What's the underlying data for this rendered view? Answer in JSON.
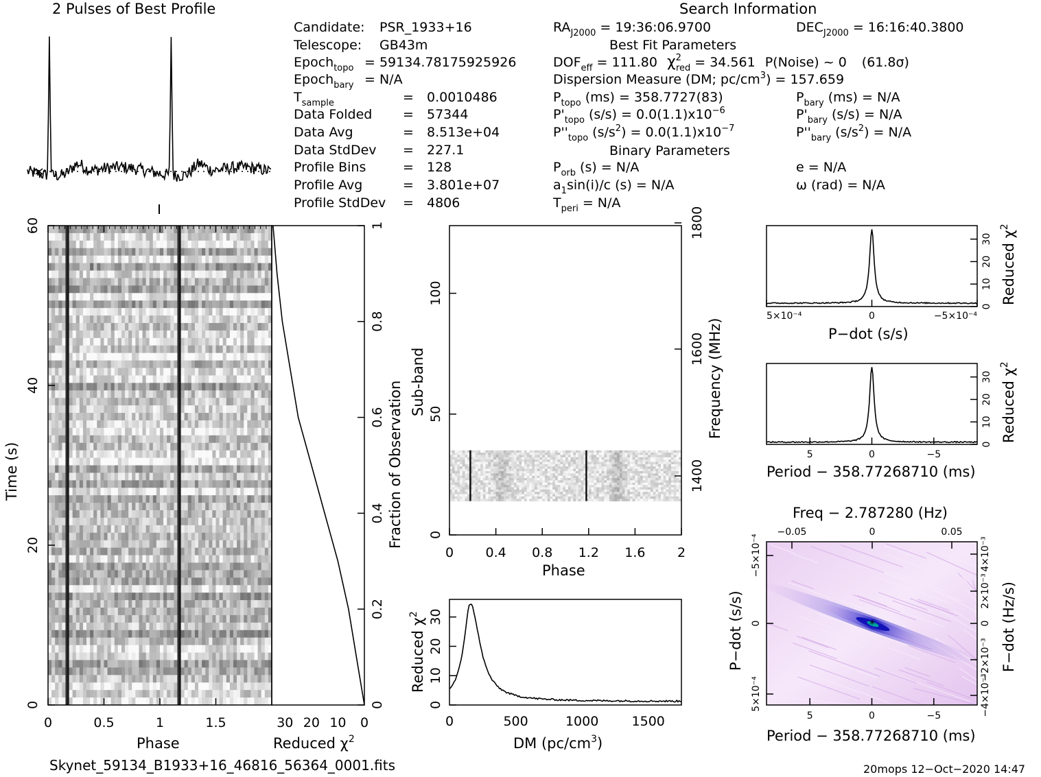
{
  "header": {
    "profile_title": "2 Pulses of Best Profile",
    "search_title": "Search Information",
    "best_fit_title": "Best Fit Parameters",
    "binary_title": "Binary Parameters"
  },
  "info_left": [
    {
      "label": "Candidate:",
      "label_sub": "",
      "value": "PSR_1933+16",
      "sep": ""
    },
    {
      "label": "Telescope:",
      "label_sub": "",
      "value": "GB43m",
      "sep": ""
    },
    {
      "label": "Epoch",
      "label_sub": "topo",
      "value": "59134.78175925926",
      "sep": "="
    },
    {
      "label": "Epoch",
      "label_sub": "bary",
      "value": "N/A",
      "sep": "="
    },
    {
      "label": "T",
      "label_sub": "sample",
      "value": "0.0010486",
      "sep": "="
    },
    {
      "label": "Data Folded",
      "label_sub": "",
      "value": "57344",
      "sep": "="
    },
    {
      "label": "Data Avg",
      "label_sub": "",
      "value": "8.513e+04",
      "sep": "="
    },
    {
      "label": "Data StdDev",
      "label_sub": "",
      "value": "227.1",
      "sep": "="
    },
    {
      "label": "Profile Bins",
      "label_sub": "",
      "value": "128",
      "sep": "="
    },
    {
      "label": "Profile Avg",
      "label_sub": "",
      "value": "3.801e+07",
      "sep": "="
    },
    {
      "label": "Profile StdDev",
      "label_sub": "",
      "value": "4806",
      "sep": "="
    }
  ],
  "info_mid": {
    "ra_label": "RA",
    "ra_sub": "J2000",
    "ra_value": "= 19:36:06.9700",
    "dec_label": "DEC",
    "dec_sub": "J2000",
    "dec_value": "= 16:16:40.3800",
    "dof_label": "DOF",
    "dof_sub": "eff",
    "dof_value": "= 111.80",
    "chi_label": "χ",
    "chi_sup": "2",
    "chi_sub": "red",
    "chi_value": "= 34.561",
    "pnoise": "P(Noise) ~ 0",
    "sigma": "(61.8σ)",
    "dm_text": "Dispersion Measure (DM; pc/cm",
    "dm_sup": "3",
    "dm_value": ") = 157.659",
    "ptopo_label": "P",
    "ptopo_sub": "topo",
    "ptopo_value": "(ms) =  358.7727(83)",
    "pdtopo_label": "P'",
    "pdtopo_sub": "topo",
    "pdtopo_value": "(s/s) = 0.0(1.1)x10",
    "pdtopo_exp": "−6",
    "pddtopo_label": "P''",
    "pddtopo_sub": "topo",
    "pddtopo_value": "(s/s",
    "pddtopo_sup": "2",
    "pddtopo_value2": ") = 0.0(1.1)x10",
    "pddtopo_exp": "−7",
    "porb_label": "P",
    "porb_sub": "orb",
    "porb_value": "(s) = N/A",
    "a1_text": "a",
    "a1_sub": "1",
    "a1_value": "sin(i)/c (s) = N/A",
    "tperi_label": "T",
    "tperi_sub": "peri",
    "tperi_value": "= N/A"
  },
  "info_right": {
    "pbary_label": "P",
    "pbary_sub": "bary",
    "pbary_value": "(ms) = N/A",
    "pdbary_label": "P'",
    "pdbary_sub": "bary",
    "pdbary_value": "(s/s) = N/A",
    "pddbary_label": "P''",
    "pddbary_sub": "bary",
    "pddbary_value": "(s/s",
    "pddbary_sup": "2",
    "pddbary_value2": ") = N/A",
    "e_value": "e = N/A",
    "omega_value": "ω (rad) = N/A"
  },
  "footer": {
    "filename": "Skynet_59134_B1933+16_46816_56364_0001.fits",
    "stamp": "20mops 12−Oct−2020 14:47"
  },
  "colors": {
    "ink": "#000000",
    "heat_low": "#ffffff",
    "heat_mid": "#e8b8ee",
    "heat_high": "#1e1ecc",
    "heat_peak": "#00a0a0"
  },
  "chart_data": [
    {
      "id": "profile",
      "type": "line",
      "title": "2 Pulses of Best Profile",
      "xlabel": "",
      "ylabel": "",
      "x_range": [
        0,
        2
      ],
      "peaks_phase": [
        0.18,
        1.18
      ],
      "grid": false
    },
    {
      "id": "time_phase",
      "type": "heatmap",
      "xlabel": "Phase",
      "ylabel": "Time (s)",
      "x_ticks": [
        "0",
        "0.5",
        "1",
        "1.5"
      ],
      "y_ticks": [
        "0",
        "20",
        "40",
        "60"
      ],
      "xlim": [
        0,
        2
      ],
      "ylim": [
        0,
        60
      ],
      "pulse_phases": [
        0.18,
        1.18
      ]
    },
    {
      "id": "time_chi2",
      "type": "line",
      "xlabel": "Reduced χ",
      "xlabel_sup": "2",
      "ylabel": "Fraction of Observation",
      "x_ticks": [
        "30",
        "20",
        "10",
        "0"
      ],
      "y_ticks": [
        "0",
        "0.2",
        "0.4",
        "0.6",
        "0.8",
        "1"
      ],
      "xlim": [
        35,
        0
      ],
      "ylim": [
        0,
        1
      ],
      "points": [
        [
          0,
          0
        ],
        [
          3,
          0.1
        ],
        [
          6,
          0.2
        ],
        [
          10,
          0.3
        ],
        [
          15,
          0.4
        ],
        [
          20,
          0.5
        ],
        [
          25,
          0.6
        ],
        [
          28,
          0.7
        ],
        [
          31,
          0.8
        ],
        [
          33,
          0.9
        ],
        [
          34.5,
          1.0
        ]
      ]
    },
    {
      "id": "subband_phase",
      "type": "heatmap",
      "xlabel": "Phase",
      "ylabel": "Sub-band",
      "ylabel_right": "Frequency (MHz)",
      "x_ticks": [
        "0",
        "0.4",
        "0.8",
        "1.2",
        "1.6",
        "2"
      ],
      "y_ticks": [
        "0",
        "50",
        "100"
      ],
      "y_ticks_right": [
        "1400",
        "1600",
        "1800"
      ],
      "xlim": [
        0,
        2
      ],
      "ylim": [
        0,
        128
      ],
      "band_subbands": [
        14,
        35
      ],
      "pulse_phases": [
        0.18,
        1.18
      ]
    },
    {
      "id": "dm_chi2",
      "type": "line",
      "xlabel": "DM (pc/cm",
      "xlabel_sup": "3",
      "xlabel_end": ")",
      "ylabel": "Reduced χ",
      "ylabel_sup": "2",
      "x_ticks": [
        "0",
        "500",
        "1000",
        "1500"
      ],
      "y_ticks": [
        "0",
        "10",
        "20",
        "30"
      ],
      "xlim": [
        0,
        1750
      ],
      "ylim": [
        0,
        36
      ],
      "peak": {
        "dm": 157.659,
        "chi2": 34.561
      },
      "baseline": 1.2
    },
    {
      "id": "pdot_chi2",
      "type": "line",
      "xlabel": "P−dot (s/s)",
      "ylabel": "Reduced χ",
      "ylabel_sup": "2",
      "x_ticks": [
        "5×10⁻⁴",
        "0",
        "−5×10⁻⁴"
      ],
      "y_ticks": [
        "0",
        "10",
        "20",
        "30"
      ],
      "xlim": [
        0.0005,
        -0.0005
      ],
      "ylim": [
        0,
        36
      ],
      "peak": {
        "x": 0,
        "chi2": 34.561
      },
      "baseline": 1.5
    },
    {
      "id": "period_chi2",
      "type": "line",
      "xlabel": "Period − 358.77268710 (ms)",
      "ylabel": "Reduced χ",
      "ylabel_sup": "2",
      "x_ticks": [
        "5",
        "0",
        "−5"
      ],
      "y_ticks": [
        "0",
        "10",
        "20",
        "30"
      ],
      "xlim": [
        8.5,
        -8.5
      ],
      "ylim": [
        0,
        36
      ],
      "peak": {
        "x": 0,
        "chi2": 34.561
      },
      "baseline": 1.0
    },
    {
      "id": "period_pdot",
      "type": "heatmap",
      "title": "Freq − 2.787280 (Hz)",
      "xlabel": "Period − 358.77268710 (ms)",
      "ylabel": "P−dot (s/s)",
      "ylabel_right": "F−dot (Hz/s)",
      "x_ticks": [
        "5",
        "0",
        "−5"
      ],
      "x_ticks_top": [
        "−0.05",
        "0",
        "0.05"
      ],
      "y_ticks": [
        "−5×10⁻⁴",
        "0",
        "5×10⁻⁴"
      ],
      "y_ticks_right": [
        "4×10⁻³",
        "2×10⁻³",
        "0",
        "−2×10⁻³",
        "−4×10⁻³"
      ],
      "xlim": [
        8.5,
        -8.5
      ],
      "ylim": [
        0.0005,
        -0.0005
      ],
      "best": {
        "period": 0,
        "pdot": 0
      }
    }
  ]
}
